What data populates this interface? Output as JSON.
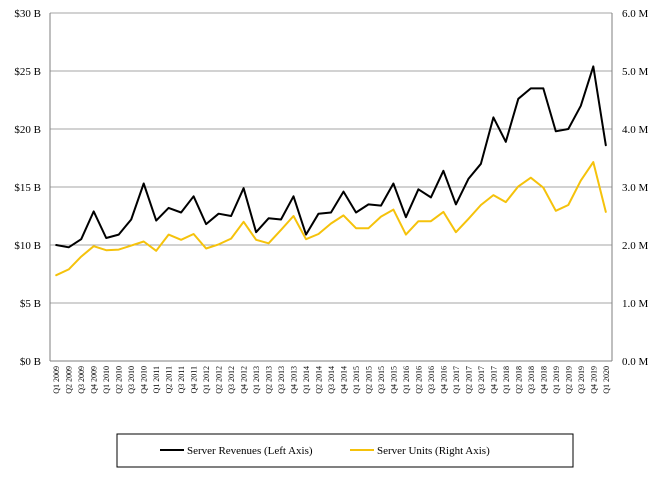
{
  "chart_data": {
    "type": "line",
    "title": "",
    "xlabel": "",
    "ylabel": "",
    "categories": [
      "Q1 2009",
      "Q2 2009",
      "Q3 2009",
      "Q4 2009",
      "Q1 2010",
      "Q2 2010",
      "Q3 2010",
      "Q4 2010",
      "Q1 2011",
      "Q2 2011",
      "Q3 2011",
      "Q4 2011",
      "Q1 2012",
      "Q2 2012",
      "Q3 2012",
      "Q4 2012",
      "Q1 2013",
      "Q2 2013",
      "Q3 2013",
      "Q4 2013",
      "Q1 2014",
      "Q2 2014",
      "Q3 2014",
      "Q4 2014",
      "Q1 2015",
      "Q2 2015",
      "Q3 2015",
      "Q4 2015",
      "Q1 2016",
      "Q2 2016",
      "Q3 2016",
      "Q4 2016",
      "Q1 2017",
      "Q2 2017",
      "Q3 2017",
      "Q4 2017",
      "Q1 2018",
      "Q2 2018",
      "Q3 2018",
      "Q4 2018",
      "Q1 2019",
      "Q2 2019",
      "Q3 2019",
      "Q4 2019",
      "Q1 2020"
    ],
    "left_axis": {
      "ylim": [
        0,
        30
      ],
      "ticks": [
        0,
        5,
        10,
        15,
        20,
        25,
        30
      ],
      "tick_labels": [
        "$0 B",
        "$5 B",
        "$10 B",
        "$15 B",
        "$20 B",
        "$25 B",
        "$30 B"
      ]
    },
    "right_axis": {
      "ylim": [
        0,
        6
      ],
      "ticks": [
        0,
        1,
        2,
        3,
        4,
        5,
        6
      ],
      "tick_labels": [
        "0.0 M",
        "1.0 M",
        "2.0 M",
        "3.0 M",
        "4.0 M",
        "5.0 M",
        "6.0 M"
      ]
    },
    "series": [
      {
        "name": "Server Revenues (Left Axis)",
        "axis": "left",
        "color": "#000000",
        "values": [
          10.0,
          9.8,
          10.5,
          12.9,
          10.6,
          10.9,
          12.2,
          15.3,
          12.1,
          13.2,
          12.8,
          14.2,
          11.8,
          12.7,
          12.5,
          14.9,
          11.1,
          12.3,
          12.2,
          14.2,
          10.9,
          12.7,
          12.8,
          14.6,
          12.8,
          13.5,
          13.4,
          15.3,
          12.4,
          14.8,
          14.1,
          16.4,
          13.5,
          15.7,
          17.0,
          21.0,
          18.9,
          22.6,
          23.5,
          23.5,
          19.8,
          20.0,
          22.0,
          25.4,
          18.6
        ]
      },
      {
        "name": "Server Units (Right Axis)",
        "axis": "right",
        "color": "#F5C20B",
        "values": [
          1.48,
          1.58,
          1.8,
          1.98,
          1.91,
          1.92,
          1.99,
          2.06,
          1.9,
          2.18,
          2.09,
          2.19,
          1.94,
          2.01,
          2.11,
          2.4,
          2.09,
          2.03,
          2.26,
          2.5,
          2.1,
          2.19,
          2.37,
          2.51,
          2.29,
          2.29,
          2.49,
          2.61,
          2.18,
          2.41,
          2.41,
          2.57,
          2.22,
          2.45,
          2.69,
          2.86,
          2.74,
          3.01,
          3.16,
          2.99,
          2.59,
          2.69,
          3.11,
          3.43,
          2.57
        ]
      }
    ],
    "grid": true,
    "legend_position": "bottom"
  }
}
